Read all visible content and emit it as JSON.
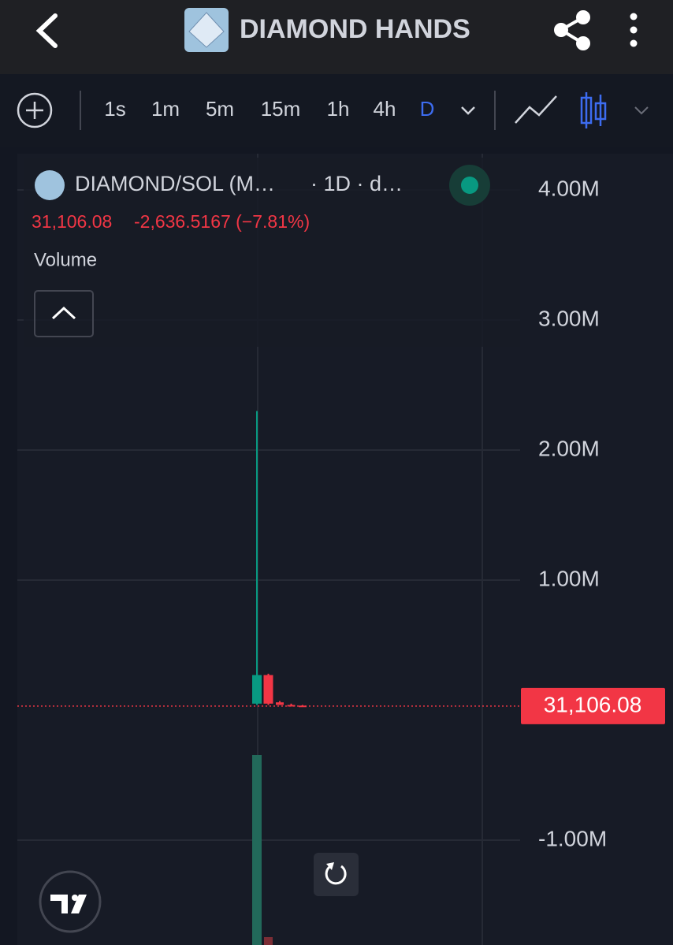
{
  "header": {
    "title": "DIAMOND HANDS"
  },
  "toolbar": {
    "intervals": [
      "1s",
      "1m",
      "5m",
      "15m",
      "1h",
      "4h",
      "D"
    ],
    "active": 6
  },
  "legend": {
    "symbol": "DIAMOND/SOL (M…",
    "interval": "· 1D · d…",
    "last": "31,106.08",
    "change": "-2,636.5167 (−7.81%)",
    "volume_label": "Volume"
  },
  "chart_data": {
    "type": "candlestick",
    "ylim": [
      -1.806,
      4.279
    ],
    "yticks": [
      {
        "value": 4,
        "label": "4.00M"
      },
      {
        "value": 3,
        "label": "3.00M"
      },
      {
        "value": 2,
        "label": "2.00M"
      },
      {
        "value": 1,
        "label": "1.00M"
      },
      {
        "value": -1,
        "label": "-1.00M"
      }
    ],
    "open": [
      0.05,
      0.27,
      0.06,
      0.04,
      0.035
    ],
    "high": [
      2.3,
      0.28,
      0.07,
      0.05,
      0.04
    ],
    "low": [
      0.04,
      0.04,
      0.04,
      0.03,
      0.03
    ],
    "close": [
      0.27,
      0.05,
      0.04,
      0.035,
      0.031
    ],
    "up_color": "#089981",
    "down_color": "#f23645",
    "last_price": {
      "value": 0.03110608,
      "label": "31,106.08"
    },
    "grid": true
  }
}
